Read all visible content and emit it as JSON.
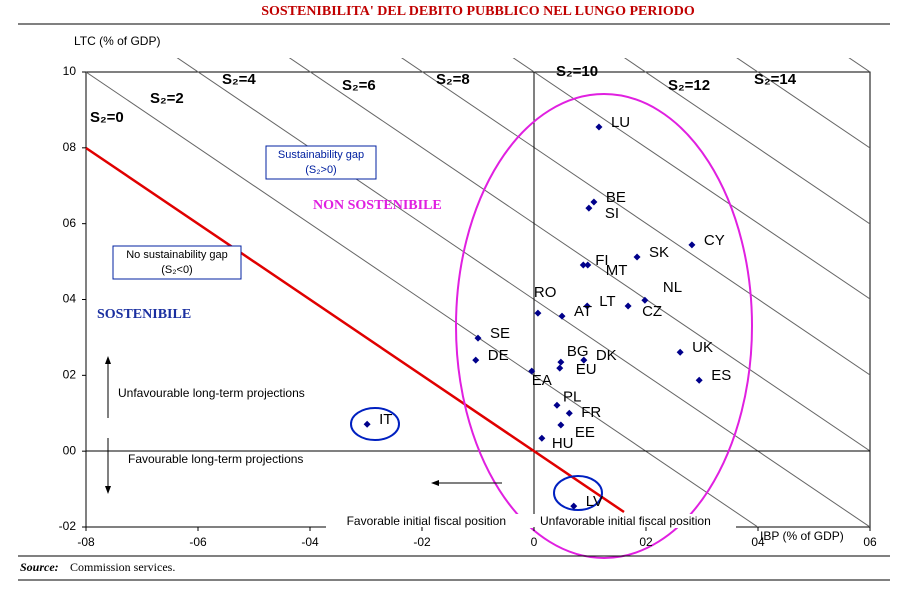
{
  "chart_data": {
    "type": "scatter",
    "title": "SOSTENIBILITA' DEL DEBITO PUBBLICO NEL LUNGO PERIODO",
    "y_label": "LTC (% of GDP)",
    "x_label": "IBP (% of GDP)",
    "xlim": [
      -8,
      6
    ],
    "ylim": [
      -2,
      10
    ],
    "xticks": [
      {
        "value": -8,
        "label": "-08"
      },
      {
        "value": -6,
        "label": "-06"
      },
      {
        "value": -4,
        "label": "-04"
      },
      {
        "value": -2,
        "label": "-02"
      },
      0,
      {
        "value": 2,
        "label": "02"
      },
      {
        "value": 4,
        "label": "04"
      },
      {
        "value": 6,
        "label": "06"
      }
    ],
    "yticks": [
      {
        "value": -2,
        "label": "-02"
      },
      {
        "value": 0,
        "label": "00"
      },
      {
        "value": 2,
        "label": "02"
      },
      {
        "value": 4,
        "label": "04"
      },
      {
        "value": 6,
        "label": "06"
      },
      {
        "value": 8,
        "label": "08"
      },
      10
    ],
    "color": "#00008b",
    "points": [
      {
        "label": "LU",
        "x": 1.16,
        "y": 8.55
      },
      {
        "label": "BE",
        "x": 1.07,
        "y": 6.57
      },
      {
        "label": "SI",
        "x": 0.98,
        "y": 6.41
      },
      {
        "label": "CY",
        "x": 2.82,
        "y": 5.44
      },
      {
        "label": "SK",
        "x": 1.84,
        "y": 5.12
      },
      {
        "label": "FI",
        "x": 0.88,
        "y": 4.91
      },
      {
        "label": "MT",
        "x": 0.96,
        "y": 4.91
      },
      {
        "label": "NL",
        "x": 1.98,
        "y": 3.98
      },
      {
        "label": "LT",
        "x": 0.95,
        "y": 3.83
      },
      {
        "label": "CZ",
        "x": 1.68,
        "y": 3.83
      },
      {
        "label": "RO",
        "x": 0.07,
        "y": 3.64
      },
      {
        "label": "AT",
        "x": 0.5,
        "y": 3.56
      },
      {
        "label": "SE",
        "x": -1.0,
        "y": 2.98
      },
      {
        "label": "UK",
        "x": 2.61,
        "y": 2.61
      },
      {
        "label": "BG",
        "x": 0.48,
        "y": 2.35
      },
      {
        "label": "DK",
        "x": 0.89,
        "y": 2.4
      },
      {
        "label": "EU",
        "x": 0.46,
        "y": 2.19
      },
      {
        "label": "DE",
        "x": -1.04,
        "y": 2.4
      },
      {
        "label": "EA",
        "x": -0.04,
        "y": 2.11
      },
      {
        "label": "ES",
        "x": 2.95,
        "y": 1.87
      },
      {
        "label": "PL",
        "x": 0.41,
        "y": 1.21
      },
      {
        "label": "FR",
        "x": 0.63,
        "y": 1.0
      },
      {
        "label": "EE",
        "x": 0.48,
        "y": 0.69
      },
      {
        "label": "IT",
        "x": -2.98,
        "y": 0.71
      },
      {
        "label": "HU",
        "x": 0.14,
        "y": 0.34
      },
      {
        "label": "LV",
        "x": 0.71,
        "y": -1.45
      }
    ],
    "s2_labels": [
      "S₂=0",
      "S₂=2",
      "S₂=4",
      "S₂=6",
      "S₂=8",
      "S₂=10",
      "S₂=12",
      "S₂=14"
    ],
    "annotations": {
      "gap_title": "Sustainability gap",
      "gap_sub": "(S₂>0)",
      "nogap_title": "No sustainability gap",
      "nogap_sub": "(S₂<0)",
      "non_sostenibile": "NON SOSTENIBILE",
      "sostenibile": "SOSTENIBILE",
      "unfav_lt": "Unfavourable long-term projections",
      "fav_lt": "Favourable long-term projections",
      "fav_fiscal": "Favorable initial fiscal position",
      "unfav_fiscal": "Unfavorable initial fiscal position"
    },
    "source_label": "Source:",
    "source_text": "Commission services."
  }
}
